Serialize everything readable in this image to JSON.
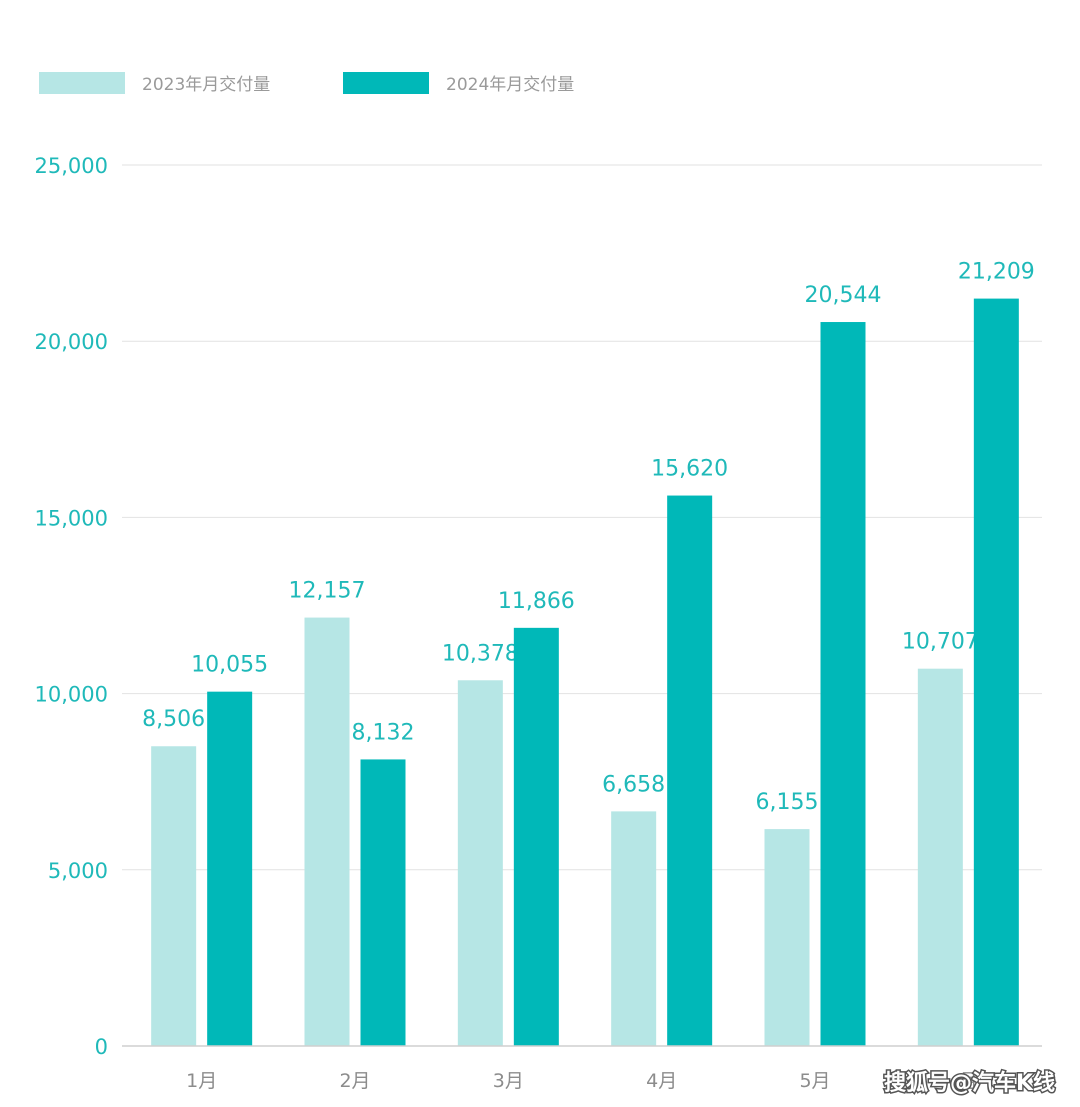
{
  "chart_data": {
    "type": "bar",
    "categories": [
      "1月",
      "2月",
      "3月",
      "4月",
      "5月",
      "6月"
    ],
    "category_labels_visible": [
      "1月",
      "2月",
      "3月",
      "4月",
      "5月",
      "月"
    ],
    "series": [
      {
        "name": "2023年月交付量",
        "color": "#b6e6e5",
        "values": [
          8506,
          12157,
          10378,
          6658,
          6155,
          10707
        ],
        "labels": [
          "8,506",
          "12,157",
          "10,378",
          "6,658",
          "6,155",
          "10,707"
        ]
      },
      {
        "name": "2024年月交付量",
        "color": "#00b8b8",
        "values": [
          10055,
          8132,
          11866,
          15620,
          20544,
          21209
        ],
        "labels": [
          "10,055",
          "8,132",
          "11,866",
          "15,620",
          "20,544",
          "21,209"
        ]
      }
    ],
    "ylim": [
      0,
      25000
    ],
    "yticks": [
      0,
      5000,
      10000,
      15000,
      20000,
      25000
    ],
    "ytick_labels": [
      "0",
      "5,000",
      "10,000",
      "15,000",
      "20,000",
      "25,000"
    ],
    "grid": true,
    "legend_position": "top-left",
    "title": "",
    "xlabel": "",
    "ylabel": ""
  },
  "watermark": "搜狐号@汽车K线"
}
